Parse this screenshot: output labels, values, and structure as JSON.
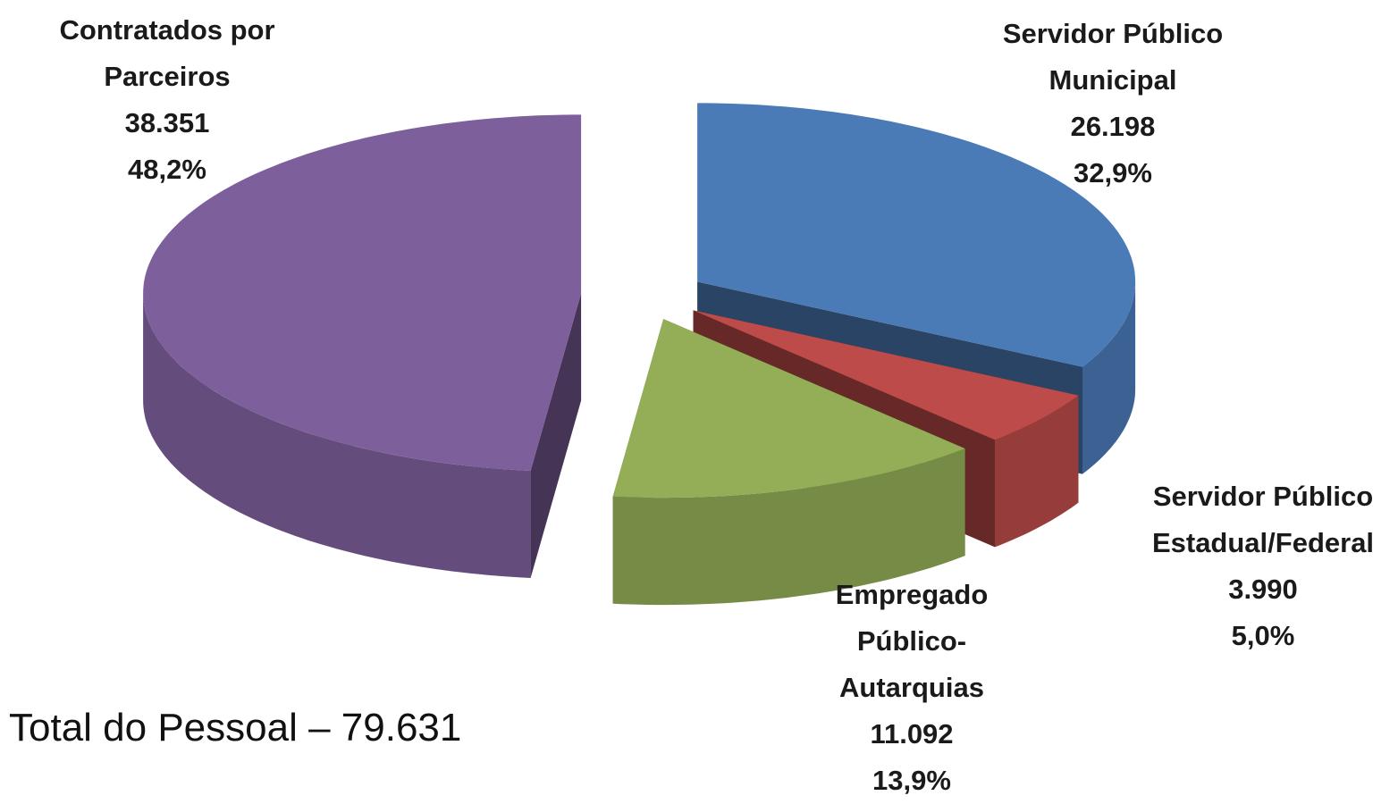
{
  "chart_data": {
    "type": "pie3d",
    "categories": [
      "Servidor Público Municipal",
      "Servidor Público Estadual/Federal",
      "Empregado Público-Autarquias",
      "Contratados por Parceiros"
    ],
    "values": [
      26198,
      3990,
      11092,
      38351
    ],
    "value_labels": [
      "26.198",
      "3.990",
      "11.092",
      "38.351"
    ],
    "percent_labels": [
      "32,9%",
      "5,0%",
      "13,9%",
      "48,2%"
    ],
    "colors": [
      "#4a7bb7",
      "#bc4b49",
      "#93ae57",
      "#7d5f9b"
    ],
    "annotation": "Total do Pessoal – 79.631"
  }
}
